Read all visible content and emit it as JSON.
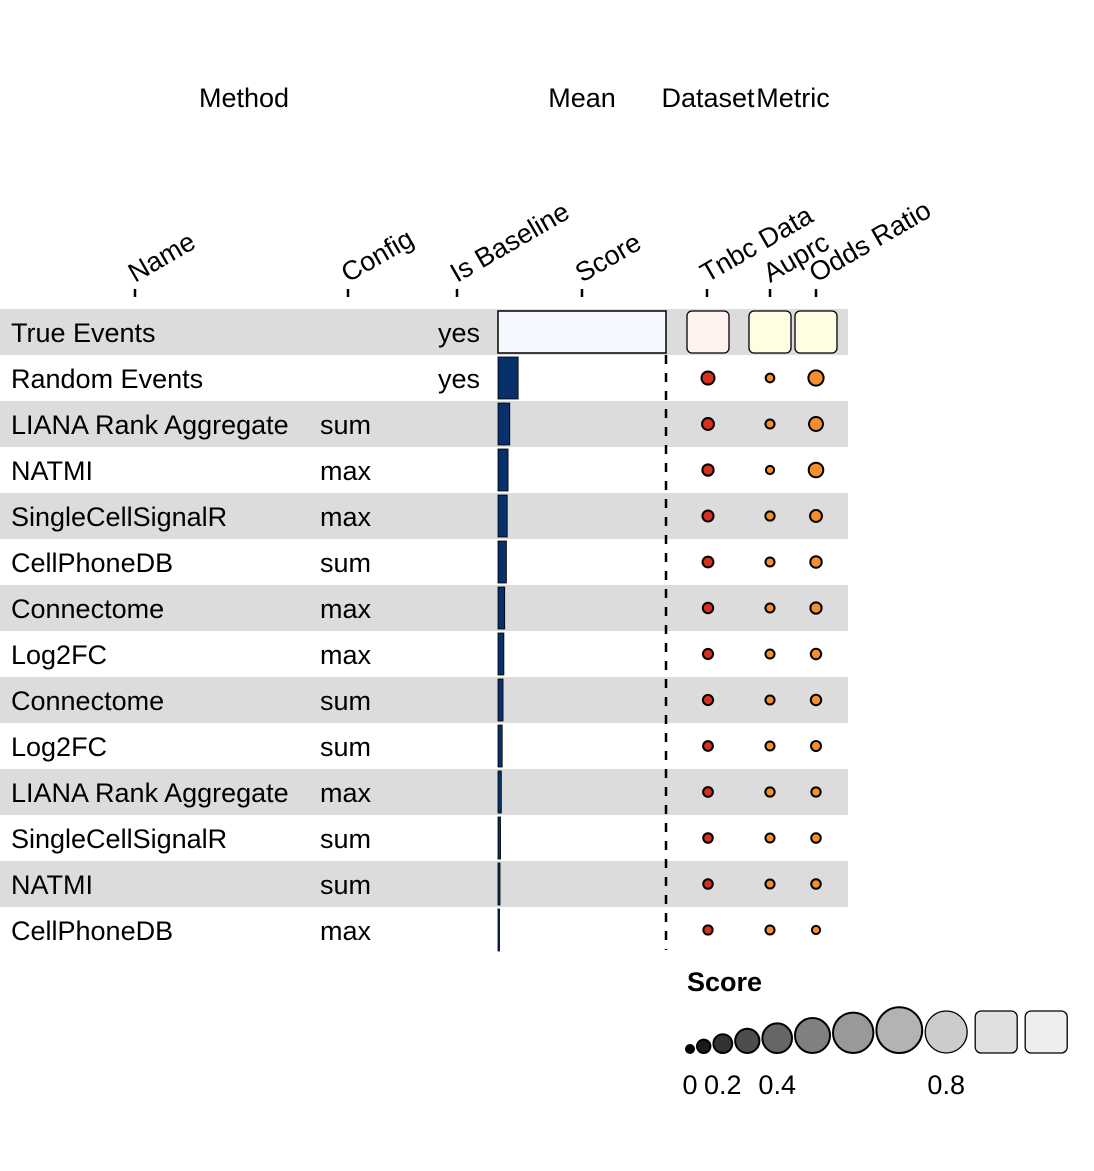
{
  "chart_data": {
    "type": "table",
    "groups": [
      {
        "key": "method",
        "label": "Method"
      },
      {
        "key": "mean",
        "label": "Mean"
      },
      {
        "key": "dataset",
        "label": "Dataset"
      },
      {
        "key": "metric",
        "label": "Metric"
      }
    ],
    "columns": [
      {
        "key": "name",
        "label": "Name",
        "group": "method"
      },
      {
        "key": "config",
        "label": "Config",
        "group": "method"
      },
      {
        "key": "is_baseline",
        "label": "Is Baseline",
        "group": "method"
      },
      {
        "key": "score",
        "label": "Score",
        "group": "mean"
      },
      {
        "key": "tnbc",
        "label": "Tnbc Data",
        "group": "dataset"
      },
      {
        "key": "auprc",
        "label": "Auprc",
        "group": "metric"
      },
      {
        "key": "odds",
        "label": "Odds Ratio",
        "group": "metric"
      }
    ],
    "colors": {
      "row_stripe": "#dcdcdc",
      "score_bar": "#08306b",
      "true_events_bar_fill": "#f5f9ff",
      "tnbc": "#d7301f",
      "tnbc_box": "#fdf2ee",
      "auprc": "#f68d2e",
      "auprc_box": "#fffee3",
      "odds": "#f68d2e",
      "odds_box": "#fffee3",
      "legend_fill": "#808080"
    },
    "rows": [
      {
        "name": "True Events",
        "config": "",
        "is_baseline": "yes",
        "score": 1.0,
        "tnbc": 1.0,
        "auprc": 1.0,
        "odds": 1.0
      },
      {
        "name": "Random Events",
        "config": "",
        "is_baseline": "yes",
        "score": 0.12,
        "tnbc": 0.32,
        "auprc": 0.12,
        "odds": 0.42
      },
      {
        "name": "LIANA Rank Aggregate",
        "config": "sum",
        "is_baseline": "",
        "score": 0.07,
        "tnbc": 0.27,
        "auprc": 0.14,
        "odds": 0.36
      },
      {
        "name": "NATMI",
        "config": "max",
        "is_baseline": "",
        "score": 0.06,
        "tnbc": 0.24,
        "auprc": 0.1,
        "odds": 0.39
      },
      {
        "name": "SingleCellSignalR",
        "config": "max",
        "is_baseline": "",
        "score": 0.055,
        "tnbc": 0.23,
        "auprc": 0.15,
        "odds": 0.27
      },
      {
        "name": "CellPhoneDB",
        "config": "sum",
        "is_baseline": "",
        "score": 0.05,
        "tnbc": 0.22,
        "auprc": 0.14,
        "odds": 0.25
      },
      {
        "name": "Connectome",
        "config": "max",
        "is_baseline": "",
        "score": 0.04,
        "tnbc": 0.2,
        "auprc": 0.14,
        "odds": 0.24
      },
      {
        "name": "Log2FC",
        "config": "max",
        "is_baseline": "",
        "score": 0.035,
        "tnbc": 0.19,
        "auprc": 0.14,
        "odds": 0.2
      },
      {
        "name": "Connectome",
        "config": "sum",
        "is_baseline": "",
        "score": 0.03,
        "tnbc": 0.19,
        "auprc": 0.14,
        "odds": 0.2
      },
      {
        "name": "Log2FC",
        "config": "sum",
        "is_baseline": "",
        "score": 0.025,
        "tnbc": 0.17,
        "auprc": 0.14,
        "odds": 0.18
      },
      {
        "name": "LIANA Rank Aggregate",
        "config": "max",
        "is_baseline": "",
        "score": 0.02,
        "tnbc": 0.17,
        "auprc": 0.15,
        "odds": 0.15
      },
      {
        "name": "SingleCellSignalR",
        "config": "sum",
        "is_baseline": "",
        "score": 0.015,
        "tnbc": 0.16,
        "auprc": 0.14,
        "odds": 0.16
      },
      {
        "name": "NATMI",
        "config": "sum",
        "is_baseline": "",
        "score": 0.012,
        "tnbc": 0.16,
        "auprc": 0.14,
        "odds": 0.16
      },
      {
        "name": "CellPhoneDB",
        "config": "max",
        "is_baseline": "",
        "score": 0.008,
        "tnbc": 0.15,
        "auprc": 0.14,
        "odds": 0.1
      }
    ],
    "legend": {
      "title": "Score",
      "steps": [
        0,
        0.1,
        0.2,
        0.3,
        0.4,
        0.5,
        0.6,
        0.7,
        0.8,
        0.9,
        1.0
      ],
      "tick_labels": [
        {
          "value": 0,
          "label": "0"
        },
        {
          "value": 0.2,
          "label": "0.2"
        },
        {
          "value": 0.4,
          "label": "0.4"
        },
        {
          "value": 0.8,
          "label": "0.8"
        }
      ]
    }
  }
}
